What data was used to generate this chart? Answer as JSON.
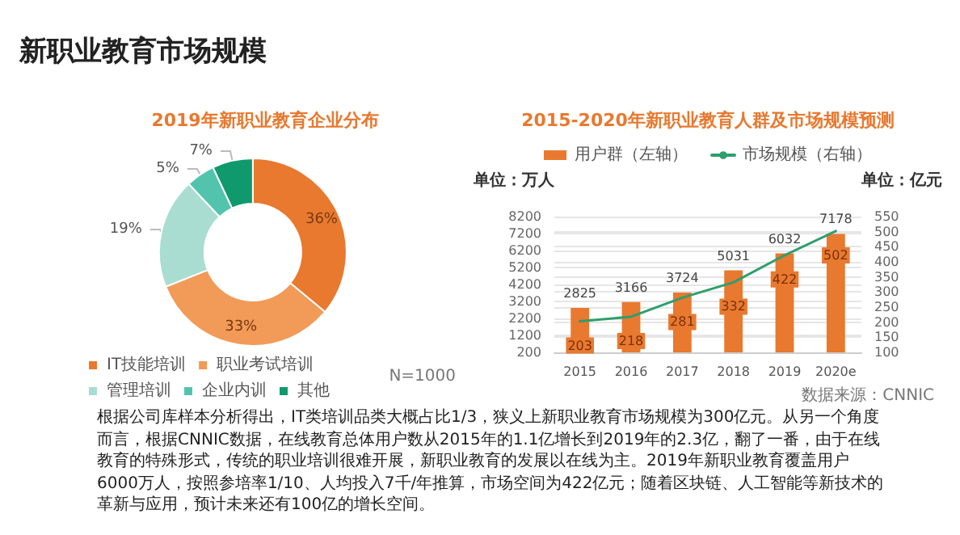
{
  "chart_data": [
    {
      "type": "donut",
      "title": "2019年新职业教育企业分布",
      "categories": [
        "IT技能培训",
        "职业考试培训",
        "管理培训",
        "企业内训",
        "其他"
      ],
      "values": [
        36,
        33,
        19,
        5,
        7
      ],
      "colors": [
        "#e8792f",
        "#f29a57",
        "#a9ddd2",
        "#52c4ad",
        "#10996d"
      ],
      "value_labels": [
        "36%",
        "33%",
        "19%",
        "5%",
        "7%"
      ],
      "legend": "bottom left",
      "annotations": [
        "新职业教育市场规模",
        "N=1000"
      ]
    },
    {
      "type": "bar",
      "title": "2015-2020年新职业教育人群及市场规模预测",
      "categories": [
        "2015",
        "2016",
        "2017",
        "2018",
        "2019",
        "2020e"
      ],
      "series": [
        {
          "name": "用户群（左轴）",
          "type": "bar",
          "color": "#e8792f",
          "values": [
            2825,
            3166,
            3724,
            5031,
            6032,
            7178
          ]
        },
        {
          "name": "市场规模（右轴）",
          "type": "line",
          "axis": "y2",
          "color": "#2e9e6e",
          "values": [
            203,
            218,
            281,
            332,
            422,
            502
          ]
        }
      ],
      "ylabel": "单位：万人",
      "y2label": "单位：亿元",
      "ylim": [
        200,
        8200
      ],
      "yticks": [
        200,
        1200,
        2200,
        3200,
        4200,
        5200,
        6200,
        7200,
        8200
      ],
      "y2lim": [
        100,
        550
      ],
      "y2ticks": [
        100,
        150,
        200,
        250,
        300,
        350,
        400,
        450,
        500,
        550
      ],
      "grid": "y",
      "legend": "top",
      "marker": "none",
      "line_style": "solid",
      "data_labels": true,
      "annotations": [
        "数据来源：CNNIC",
        "根据公司库样本分析得出，IT类培训品类大概占比1/3，狭义上新职业教育市场规模为300亿元。从另一个角度而言，根据CNNIC数据，在线教育总体用户数从2015年的1.1亿增长到2019年的2.3亿，翻了一番，由于在线教育的特殊形式，传统的职业培训很难开展，新职业教育的发展以在线为主。2019年新职业教育覆盖用户6000万人，按照参培率1/10、人均投入7千/年推算，市场空间为422亿元；随着区块链、人工智能等新技术的革新与应用，预计未来还有100亿的增长空间。"
      ]
    }
  ]
}
